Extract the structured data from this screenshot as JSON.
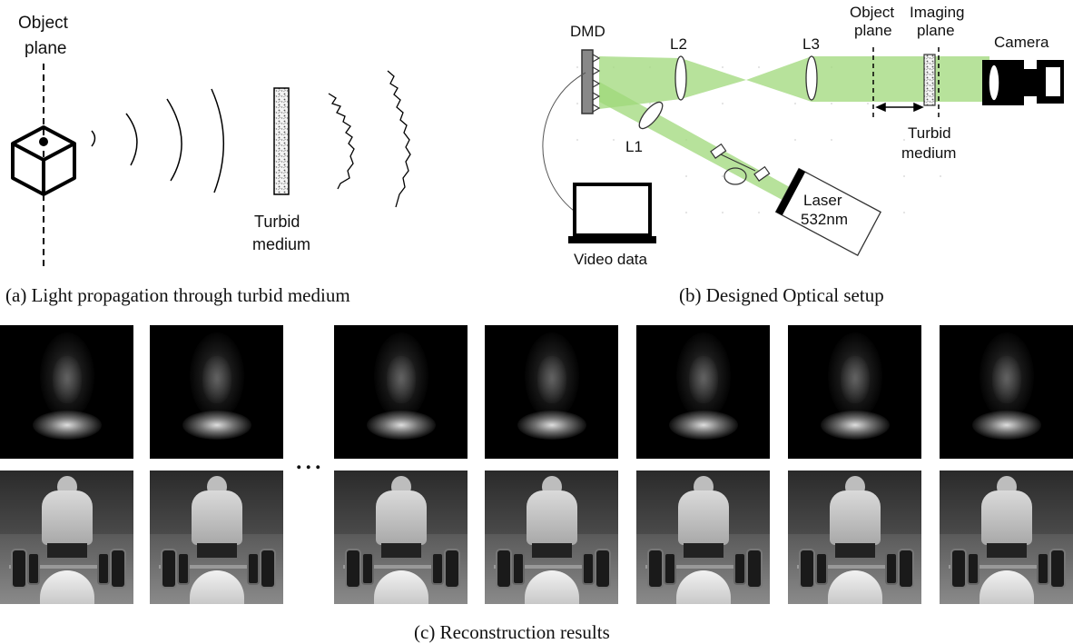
{
  "panel_a": {
    "object_plane_label_line1": "Object",
    "object_plane_label_line2": "plane",
    "turbid_label_line1": "Turbid",
    "turbid_label_line2": "medium",
    "caption": "(a) Light propagation through turbid medium"
  },
  "panel_b": {
    "dmd_label": "DMD",
    "l1_label": "L1",
    "l2_label": "L2",
    "l3_label": "L3",
    "object_plane_line1": "Object",
    "object_plane_line2": "plane",
    "imaging_plane_line1": "Imaging",
    "imaging_plane_line2": "plane",
    "camera_label": "Camera",
    "turbid_line1": "Turbid",
    "turbid_line2": "medium",
    "laser_line1": "Laser",
    "laser_line2": "532nm",
    "video_label": "Video data",
    "caption": "(b) Designed Optical setup",
    "beam_color": "#9fd87a"
  },
  "panel_c": {
    "ellipsis": "...",
    "caption": "(c) Reconstruction results"
  }
}
